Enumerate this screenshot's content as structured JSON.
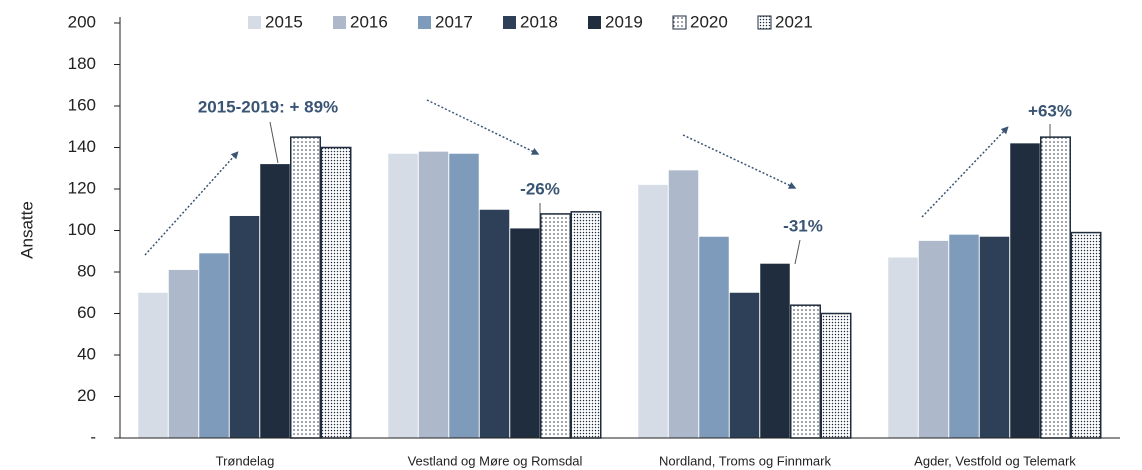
{
  "chart_data": {
    "type": "bar",
    "y_label": "Ansatte",
    "categories": [
      "Trøndelag",
      "Vestland og Møre og Romsdal",
      "Nordland, Troms og Finnmark",
      "Agder, Vestfold og Telemark"
    ],
    "series": [
      {
        "name": "2015",
        "color": "#d6dce5",
        "values": [
          70,
          137,
          122,
          87
        ]
      },
      {
        "name": "2016",
        "color": "#adb9ca",
        "values": [
          81,
          138,
          129,
          95
        ]
      },
      {
        "name": "2017",
        "color": "#7f9bbb",
        "values": [
          89,
          137,
          97,
          98
        ]
      },
      {
        "name": "2018",
        "color": "#2e4057",
        "values": [
          107,
          110,
          70,
          97
        ]
      },
      {
        "name": "2019",
        "color": "#1f2d3f",
        "values": [
          132,
          101,
          84,
          142
        ]
      },
      {
        "name": "2020",
        "color": "#1f2d3f",
        "pattern": "dots",
        "values": [
          145,
          108,
          64,
          145
        ]
      },
      {
        "name": "2021",
        "color": "#1f2d3f",
        "pattern": "dense-dots",
        "values": [
          140,
          109,
          60,
          99
        ]
      }
    ],
    "ylim": [
      0,
      200
    ],
    "yticks": [
      {
        "value": 0,
        "label": "-"
      },
      20,
      40,
      60,
      80,
      100,
      120,
      140,
      160,
      180,
      200
    ],
    "annotations": [
      "2015-2019: + 89%",
      "-26%",
      "-31%",
      "+63%"
    ]
  }
}
